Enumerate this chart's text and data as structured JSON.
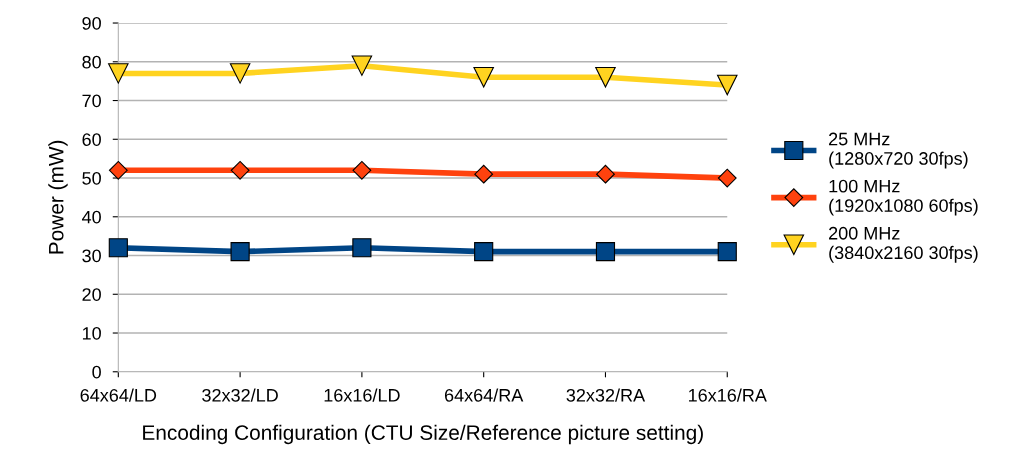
{
  "chart_data": {
    "type": "line",
    "xlabel": "Encoding Configuration (CTU Size/Reference picture setting)",
    "ylabel": "Power (mW)",
    "categories": [
      "64x64/LD",
      "32x32/LD",
      "16x16/LD",
      "64x64/RA",
      "32x32/RA",
      "16x16/RA"
    ],
    "series": [
      {
        "name": "25 MHz\n(1280x720 30fps)",
        "color": "#004586",
        "marker": "square",
        "values": [
          32,
          31,
          32,
          31,
          31,
          31
        ]
      },
      {
        "name": "100 MHz\n(1920x1080 60fps)",
        "color": "#ff420e",
        "marker": "diamond",
        "values": [
          52,
          52,
          52,
          51,
          51,
          50
        ]
      },
      {
        "name": "200 MHz\n(3840x2160 30fps)",
        "color": "#ffd320",
        "marker": "triangle_down",
        "values": [
          77,
          77,
          79,
          76,
          76,
          74
        ]
      }
    ],
    "ylim": [
      0,
      90
    ],
    "yticks": [
      0,
      10,
      20,
      30,
      40,
      50,
      60,
      70,
      80,
      90
    ],
    "grid": "y",
    "legend": "right",
    "line_style": "solid"
  }
}
